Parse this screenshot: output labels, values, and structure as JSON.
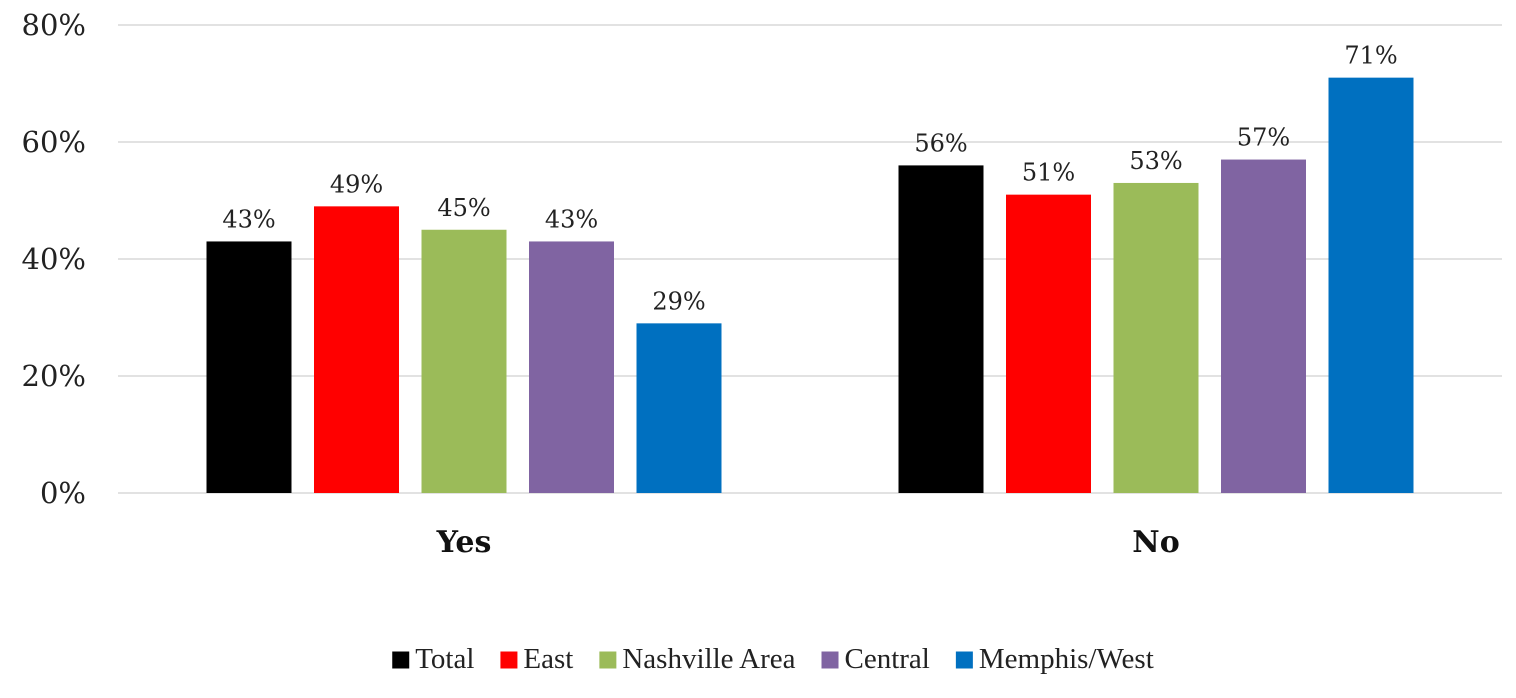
{
  "chart_data": {
    "type": "bar",
    "categories": [
      "Yes",
      "No"
    ],
    "series": [
      {
        "name": "Total",
        "color": "#000000",
        "values": [
          43,
          56
        ]
      },
      {
        "name": "East",
        "color": "#ff0000",
        "values": [
          49,
          51
        ]
      },
      {
        "name": "Nashville Area",
        "color": "#9bbb59",
        "values": [
          45,
          53
        ]
      },
      {
        "name": "Central",
        "color": "#8064a2",
        "values": [
          43,
          57
        ]
      },
      {
        "name": "Memphis/West",
        "color": "#0070c0",
        "values": [
          29,
          71
        ]
      }
    ],
    "ylim": [
      0,
      80
    ],
    "yticks": [
      0,
      20,
      40,
      60,
      80
    ],
    "ytick_labels": [
      "0%",
      "20%",
      "40%",
      "60%",
      "80%"
    ],
    "value_suffix": "%",
    "grid": true,
    "legend_position": "bottom"
  }
}
